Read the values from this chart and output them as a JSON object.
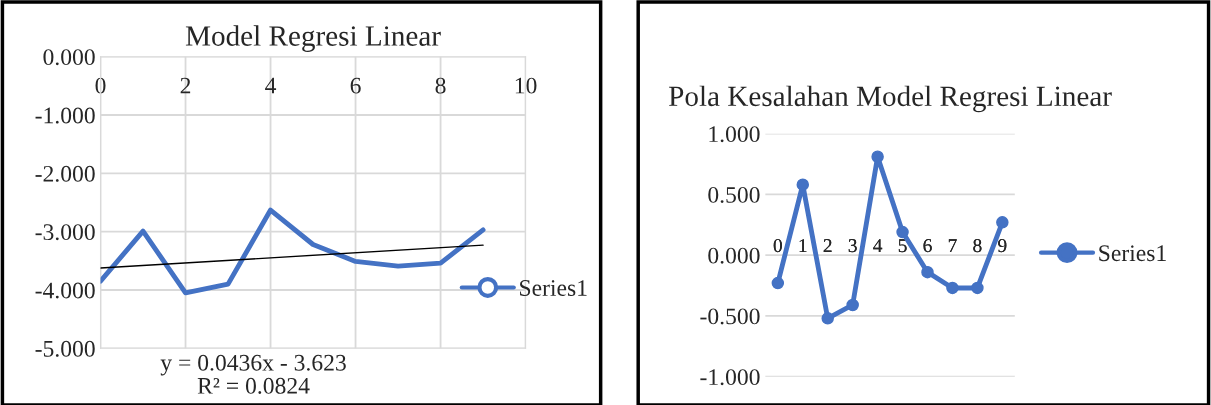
{
  "chart_data": [
    {
      "type": "line",
      "title": "Model Regresi Linear",
      "x": [
        0,
        1,
        2,
        3,
        4,
        5,
        6,
        7,
        8,
        9
      ],
      "series": [
        {
          "name": "Series1",
          "color": "#4472c4",
          "values": [
            -3.85,
            -2.99,
            -4.05,
            -3.9,
            -2.63,
            -3.22,
            -3.51,
            -3.59,
            -3.54,
            -2.97
          ]
        },
        {
          "type": "line",
          "color": "#000000",
          "x": [
            0,
            9
          ],
          "values": [
            -3.623,
            -3.231
          ]
        }
      ],
      "xlim": [
        0,
        10
      ],
      "xticks": [
        0,
        2,
        4,
        6,
        8,
        10
      ],
      "ylim": [
        -5,
        0
      ],
      "yticks": [
        {
          "value": 0,
          "label": "0.000"
        },
        {
          "value": -1,
          "label": "-1.000"
        },
        {
          "value": -2,
          "label": "-2.000"
        },
        {
          "value": -3,
          "label": "-3.000"
        },
        {
          "value": -4,
          "label": "-4.000"
        },
        {
          "value": -5,
          "label": "-5.000"
        }
      ],
      "grid": true,
      "legend": "right",
      "marker": "none",
      "annotations": [
        "y = 0.0436x - 3.623\nR² = 0.0824"
      ]
    },
    {
      "type": "line",
      "title": "Pola Kesalahan Model Regresi Linear",
      "categories": [
        "0",
        "1",
        "2",
        "3",
        "4",
        "5",
        "6",
        "7",
        "8",
        "9"
      ],
      "series": [
        {
          "name": "Series1",
          "color": "#4472c4",
          "values": [
            -0.23,
            0.58,
            -0.52,
            -0.41,
            0.81,
            0.19,
            -0.14,
            -0.27,
            -0.27,
            0.27
          ]
        }
      ],
      "ylim": [
        -1,
        1
      ],
      "yticks": [
        {
          "value": 1,
          "label": "1.000"
        },
        {
          "value": 0.5,
          "label": "0.500"
        },
        {
          "value": 0,
          "label": "0.000"
        },
        {
          "value": -0.5,
          "label": "-0.500"
        },
        {
          "value": -1,
          "label": "-1.000"
        }
      ],
      "grid": "y",
      "legend": "right",
      "marker": "circle"
    }
  ]
}
